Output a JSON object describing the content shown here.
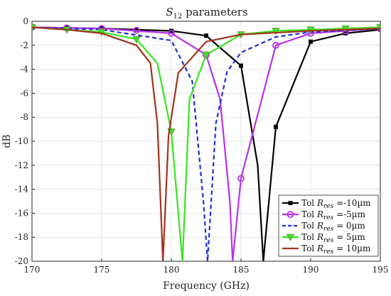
{
  "chart_data": {
    "type": "line",
    "title": "S12 parameters",
    "title_main": "S",
    "title_sub": "12",
    "title_rest": " parameters",
    "xlabel": "Frequency (GHz)",
    "ylabel": "dB",
    "xlim": [
      170,
      195
    ],
    "ylim": [
      -20,
      0
    ],
    "xticks": [
      170,
      175,
      180,
      185,
      190,
      195
    ],
    "yticks": [
      0,
      -2,
      -4,
      -6,
      -8,
      -10,
      -12,
      -14,
      -16,
      -18,
      -20
    ],
    "xtick_labels": [
      "170",
      "175",
      "180",
      "185",
      "190",
      "195"
    ],
    "ytick_labels": [
      "0",
      "-2",
      "-4",
      "-6",
      "-8",
      "-10",
      "-12",
      "-14",
      "-16",
      "-18",
      "-20"
    ],
    "grid": true,
    "legend_position": "bottom-right",
    "series": [
      {
        "name": "Tol Rres =-10µm",
        "legend_prefix": "Tol ",
        "legend_var": "R",
        "legend_sub": "res",
        "legend_suffix": " =-10µm",
        "color": "#000000",
        "line_style": "solid",
        "marker": "square",
        "x": [
          170,
          175,
          180,
          182.5,
          185,
          186.2,
          186.6,
          187.5,
          190,
          192.5,
          195
        ],
        "y": [
          -0.5,
          -0.6,
          -0.8,
          -1.2,
          -3.7,
          -12,
          -20,
          -8.8,
          -1.7,
          -1.0,
          -0.7
        ],
        "marker_x": [
          170,
          172.5,
          175,
          177.5,
          180,
          182.5,
          185,
          187.5,
          190,
          192.5,
          195
        ],
        "marker_y": [
          -0.5,
          -0.55,
          -0.6,
          -0.7,
          -0.8,
          -1.2,
          -3.7,
          -8.8,
          -1.7,
          -1.0,
          -0.7
        ]
      },
      {
        "name": "Tol Rres =-5µm",
        "legend_prefix": "Tol ",
        "legend_var": "R",
        "legend_sub": "res",
        "legend_suffix": " =-5µm",
        "color": "#b832e8",
        "line_style": "solid",
        "marker": "circle",
        "x": [
          170,
          175,
          180,
          182.5,
          183.5,
          184.2,
          184.4,
          185,
          187.5,
          190,
          195
        ],
        "y": [
          -0.5,
          -0.6,
          -1.0,
          -2.8,
          -6.5,
          -15,
          -20,
          -13.1,
          -2.0,
          -1.0,
          -0.6
        ],
        "marker_x": [
          170,
          172.5,
          175,
          177.5,
          180,
          182.5,
          185,
          187.5,
          190,
          192.5,
          195
        ],
        "marker_y": [
          -0.5,
          -0.55,
          -0.6,
          -0.75,
          -1.0,
          -2.8,
          -13.1,
          -2.0,
          -1.0,
          -0.8,
          -0.6
        ]
      },
      {
        "name": "Tol Rres = 0µm",
        "legend_prefix": "Tol ",
        "legend_var": "R",
        "legend_sub": "res",
        "legend_suffix": " = 0µm",
        "color": "#1f2fd6",
        "line_style": "dashed",
        "marker": "none",
        "x": [
          170,
          175,
          180,
          181.5,
          182.3,
          182.6,
          183.2,
          184,
          185,
          187.5,
          190,
          195
        ],
        "y": [
          -0.5,
          -0.7,
          -1.6,
          -5,
          -15,
          -20,
          -8.5,
          -4.2,
          -2.6,
          -1.3,
          -0.9,
          -0.6
        ]
      },
      {
        "name": "Tol Rres = 5µm",
        "legend_prefix": "Tol ",
        "legend_var": "R",
        "legend_sub": "res",
        "legend_suffix": " = 5µm",
        "color": "#35e61c",
        "line_style": "solid",
        "marker": "triangle-down",
        "x": [
          170,
          175,
          177.5,
          179,
          180,
          180.5,
          180.8,
          181.3,
          182.5,
          185,
          187.5,
          190,
          195
        ],
        "y": [
          -0.5,
          -0.9,
          -1.5,
          -3.5,
          -9.2,
          -16,
          -20,
          -6.5,
          -2.8,
          -1.1,
          -0.8,
          -0.7,
          -0.5
        ],
        "marker_x": [
          170,
          172.5,
          175,
          177.5,
          180,
          182.5,
          185,
          187.5,
          190,
          192.5,
          195
        ],
        "marker_y": [
          -0.5,
          -0.7,
          -0.9,
          -1.5,
          -9.2,
          -2.8,
          -1.1,
          -0.8,
          -0.7,
          -0.6,
          -0.5
        ]
      },
      {
        "name": "Tol Rres = 10µm",
        "legend_prefix": "Tol ",
        "legend_var": "R",
        "legend_sub": "res",
        "legend_suffix": " = 10µm",
        "color": "#a0321e",
        "line_style": "solid",
        "marker": "none",
        "x": [
          170,
          172.5,
          175,
          177.5,
          178.5,
          179,
          179.4,
          179.8,
          180.5,
          182.5,
          185,
          190,
          195
        ],
        "y": [
          -0.5,
          -0.7,
          -1.0,
          -2.0,
          -3.5,
          -8.5,
          -20,
          -9.5,
          -4.3,
          -1.7,
          -1.1,
          -0.8,
          -0.6
        ]
      }
    ]
  }
}
